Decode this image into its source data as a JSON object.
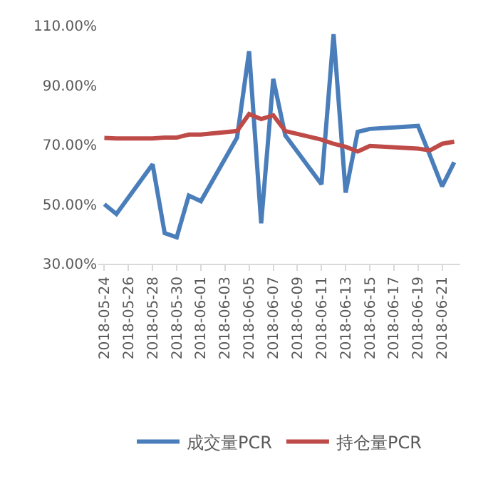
{
  "chart_data": {
    "type": "line",
    "x": [
      "2018-05-24",
      "2018-05-25",
      "2018-05-28",
      "2018-05-29",
      "2018-05-30",
      "2018-05-31",
      "2018-06-01",
      "2018-06-04",
      "2018-06-05",
      "2018-06-06",
      "2018-06-07",
      "2018-06-08",
      "2018-06-11",
      "2018-06-12",
      "2018-06-13",
      "2018-06-14",
      "2018-06-15",
      "2018-06-19",
      "2018-06-20",
      "2018-06-21",
      "2018-06-22"
    ],
    "series": [
      {
        "name": "成交量PCR",
        "color": "#4a7ebb",
        "values": [
          50,
          46.7,
          63.4,
          40.3,
          38.9,
          52.9,
          51,
          72.4,
          101.4,
          43.6,
          92.1,
          73.1,
          56.7,
          107.1,
          53.9,
          74.3,
          75.3,
          76.3,
          66.3,
          56,
          64.1
        ]
      },
      {
        "name": "持仓量PCR",
        "color": "#be4b48",
        "values": [
          72.3,
          72.1,
          72.1,
          72.4,
          72.4,
          73.4,
          73.4,
          74.6,
          80.3,
          78.6,
          79.9,
          74.6,
          71.7,
          70.3,
          69.3,
          67.7,
          69.6,
          68.7,
          68.1,
          70.3,
          71
        ]
      }
    ],
    "xlim": [
      "2018-05-23T12:00",
      "2018-06-22T12:00"
    ],
    "xticks": [
      {
        "value": "2018-05-24",
        "label": "2018-05-24"
      },
      {
        "value": "2018-05-26",
        "label": "2018-05-26"
      },
      {
        "value": "2018-05-28",
        "label": "2018-05-28"
      },
      {
        "value": "2018-05-30",
        "label": "2018-05-30"
      },
      {
        "value": "2018-06-01",
        "label": "2018-06-01"
      },
      {
        "value": "2018-06-03",
        "label": "2018-06-03"
      },
      {
        "value": "2018-06-05",
        "label": "2018-06-05"
      },
      {
        "value": "2018-06-07",
        "label": "2018-06-07"
      },
      {
        "value": "2018-06-09",
        "label": "2018-06-09"
      },
      {
        "value": "2018-06-11",
        "label": "2018-06-11"
      },
      {
        "value": "2018-06-13",
        "label": "2018-06-13"
      },
      {
        "value": "2018-06-15",
        "label": "2018-06-15"
      },
      {
        "value": "2018-06-17",
        "label": "2018-06-17"
      },
      {
        "value": "2018-06-19",
        "label": "2018-06-19"
      },
      {
        "value": "2018-06-21",
        "label": "2018-06-21"
      }
    ],
    "ylim": [
      30,
      110
    ],
    "yticks": [
      {
        "value": 30,
        "label": "30.00%"
      },
      {
        "value": 50,
        "label": "50.00%"
      },
      {
        "value": 70,
        "label": "70.00%"
      },
      {
        "value": 90,
        "label": "90.00%"
      },
      {
        "value": 110,
        "label": "110.00%"
      }
    ],
    "grid": false,
    "legend": "bottom",
    "marker": "none",
    "line_style": "solid"
  }
}
